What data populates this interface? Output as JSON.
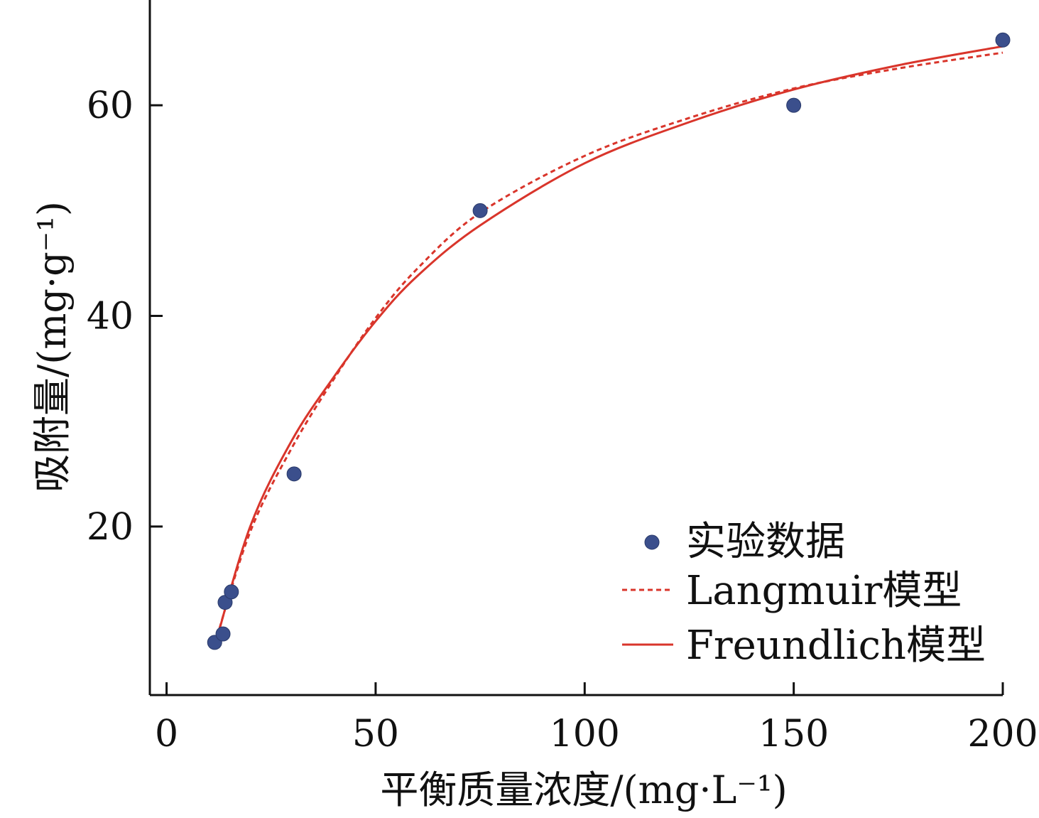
{
  "chart_data": {
    "type": "scatter",
    "title": "",
    "xlabel": "平衡质量浓度/(mg·L⁻¹)",
    "ylabel": "吸附量/(mg·g⁻¹)",
    "xlim": [
      -4,
      200
    ],
    "ylim": [
      4,
      70
    ],
    "xticks": [
      0,
      50,
      100,
      150,
      200
    ],
    "yticks": [
      20,
      40,
      60
    ],
    "grid": false,
    "legend": "bottom-right",
    "series": [
      {
        "name": "实验数据",
        "kind": "scatter",
        "color": "#3b4f8c",
        "x": [
          11.5,
          13.5,
          14,
          15.5,
          30.5,
          75,
          150,
          200
        ],
        "y": [
          9.0,
          9.8,
          12.8,
          13.8,
          25.0,
          50.0,
          60.0,
          66.2
        ]
      },
      {
        "name": "Langmuir模型",
        "kind": "line",
        "style": "dashed",
        "color": "#d9352b",
        "x": [
          11.5,
          20,
          30,
          40,
          50,
          60,
          75,
          100,
          125,
          150,
          175,
          200
        ],
        "y": [
          8.8,
          19.5,
          27.5,
          34.0,
          39.8,
          44.5,
          49.8,
          55.2,
          58.8,
          61.6,
          63.5,
          65.0
        ]
      },
      {
        "name": "Freundlich模型",
        "kind": "line",
        "style": "solid",
        "color": "#d9352b",
        "x": [
          11.5,
          20,
          30,
          40,
          50,
          60,
          75,
          100,
          125,
          150,
          175,
          200
        ],
        "y": [
          8.6,
          20.0,
          28.2,
          34.2,
          39.5,
          43.8,
          48.6,
          54.5,
          58.4,
          61.5,
          63.8,
          65.6
        ]
      }
    ]
  }
}
